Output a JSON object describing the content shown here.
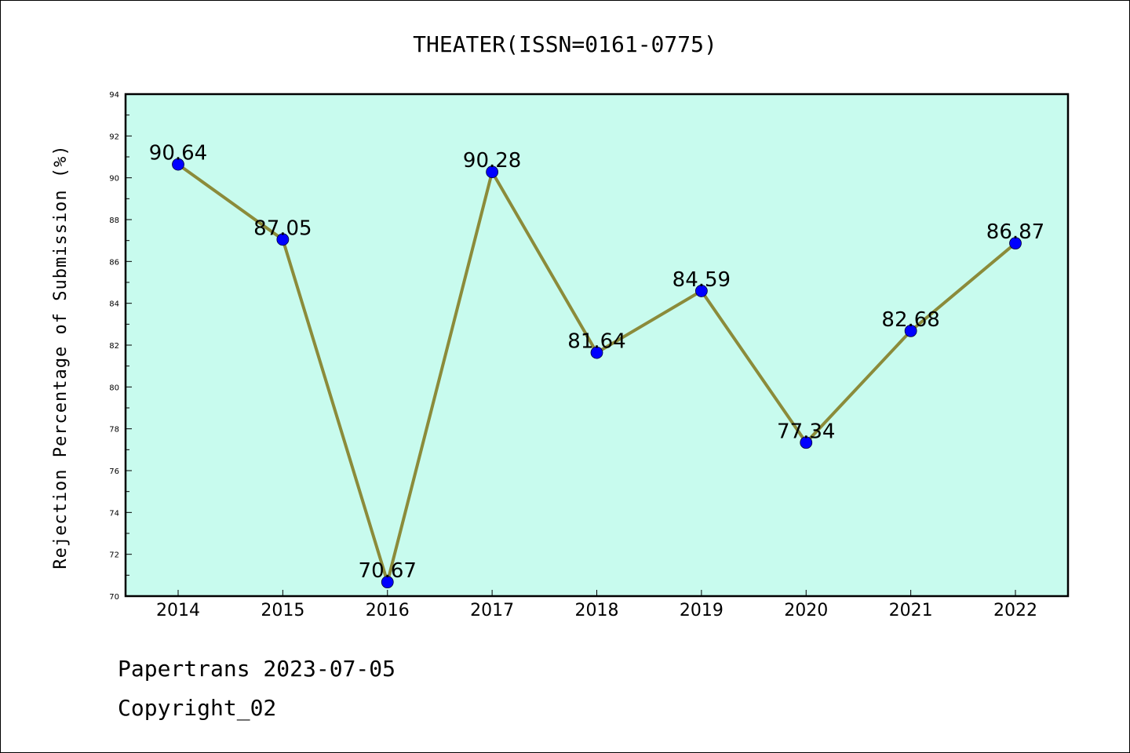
{
  "footer": {
    "line1": "Papertrans 2023-07-05",
    "line2": "Copyright_02"
  },
  "colors": {
    "plot_background": "#c8fbee",
    "line": "#8b8b3a",
    "marker": "#0000ff",
    "axes": "#000000"
  },
  "chart_data": {
    "type": "line",
    "title": "THEATER(ISSN=0161-0775)",
    "xlabel": "",
    "ylabel": "Rejection Percentage of Submission (%)",
    "categories": [
      "2014",
      "2015",
      "2016",
      "2017",
      "2018",
      "2019",
      "2020",
      "2021",
      "2022"
    ],
    "series": [
      {
        "values": [
          90.64,
          87.05,
          70.67,
          90.28,
          81.64,
          84.59,
          77.34,
          82.68,
          86.87
        ],
        "labels": [
          "90.64",
          "87.05",
          "70.67",
          "90.28",
          "81.64",
          "84.59",
          "77.34",
          "82.68",
          "86.87"
        ]
      }
    ],
    "ylim": [
      70,
      94
    ],
    "yticks": [
      "70",
      "72",
      "74",
      "76",
      "78",
      "80",
      "82",
      "84",
      "86",
      "88",
      "90",
      "92",
      "94"
    ],
    "grid": false,
    "legend": "none"
  }
}
